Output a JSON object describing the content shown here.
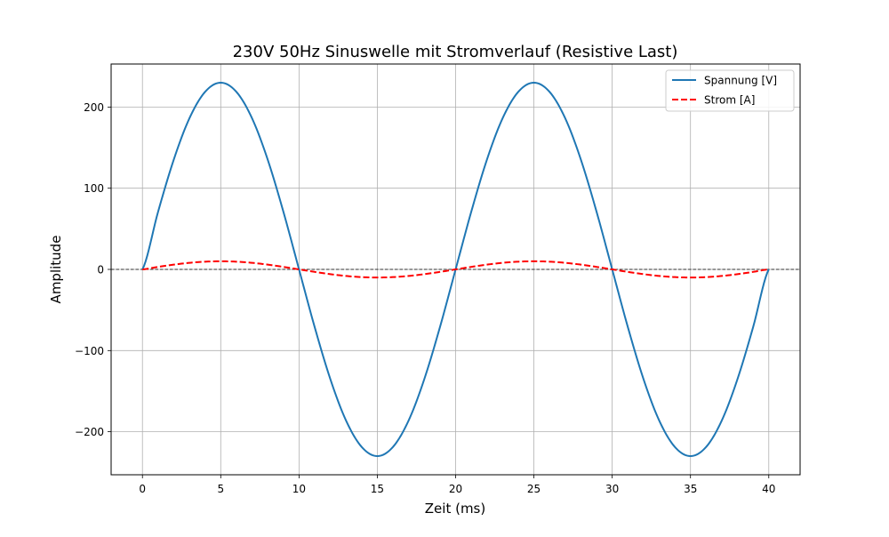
{
  "chart_data": {
    "type": "line",
    "title": "230V 50Hz Sinuswelle mit Stromverlauf (Resistive Last)",
    "xlabel": "Zeit (ms)",
    "ylabel": "Amplitude",
    "xlim": [
      -2,
      42
    ],
    "ylim": [
      -253,
      253
    ],
    "xticks": [
      0,
      5,
      10,
      15,
      20,
      25,
      30,
      35,
      40
    ],
    "yticks": [
      -200,
      -100,
      0,
      100,
      200
    ],
    "xtick_labels": [
      "0",
      "5",
      "10",
      "15",
      "20",
      "25",
      "30",
      "35",
      "40"
    ],
    "ytick_labels": [
      "−200",
      "−100",
      "0",
      "100",
      "200"
    ],
    "grid": true,
    "legend_position": "top-right",
    "x": [
      0,
      1,
      2,
      3,
      4,
      5,
      6,
      7,
      8,
      9,
      10,
      11,
      12,
      13,
      14,
      15,
      16,
      17,
      18,
      19,
      20,
      21,
      22,
      23,
      24,
      25,
      26,
      27,
      28,
      29,
      30,
      31,
      32,
      33,
      34,
      35,
      36,
      37,
      38,
      39,
      40
    ],
    "series": [
      {
        "name": "Spannung [V]",
        "color": "#1f77b4",
        "style": "solid",
        "values": [
          0,
          71.1,
          135.2,
          186.1,
          218.7,
          230,
          218.7,
          186.1,
          135.2,
          71.1,
          0,
          -71.1,
          -135.2,
          -186.1,
          -218.7,
          -230,
          -218.7,
          -186.1,
          -135.2,
          -71.1,
          0,
          71.1,
          135.2,
          186.1,
          218.7,
          230,
          218.7,
          186.1,
          135.2,
          71.1,
          0,
          -71.1,
          -135.2,
          -186.1,
          -218.7,
          -230,
          -218.7,
          -186.1,
          -135.2,
          -71.1,
          0
        ]
      },
      {
        "name": "Strom [A]",
        "color": "#ff0000",
        "style": "dashed",
        "values": [
          0,
          3.09,
          5.88,
          8.09,
          9.51,
          10,
          9.51,
          8.09,
          5.88,
          3.09,
          0,
          -3.09,
          -5.88,
          -8.09,
          -9.51,
          -10,
          -9.51,
          -8.09,
          -5.88,
          -3.09,
          0,
          3.09,
          5.88,
          8.09,
          9.51,
          10,
          9.51,
          8.09,
          5.88,
          3.09,
          0,
          -3.09,
          -5.88,
          -8.09,
          -9.51,
          -10,
          -9.51,
          -8.09,
          -5.88,
          -3.09,
          0
        ]
      }
    ],
    "zero_line": {
      "y": 0,
      "color": "#000000",
      "style": "dashed"
    }
  }
}
